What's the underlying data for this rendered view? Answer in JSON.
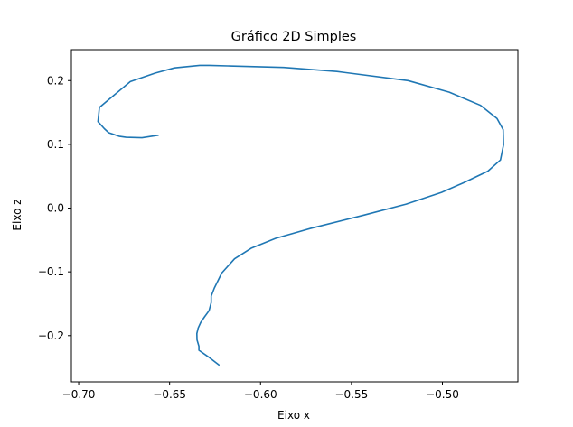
{
  "chart_data": {
    "type": "line",
    "title": "Gráfico 2D Simples",
    "xlabel": "Eixo x",
    "ylabel": "Eixo z",
    "xlim": [
      -0.704,
      -0.4585
    ],
    "ylim": [
      -0.2725,
      0.2485
    ],
    "xticks": [
      -0.7,
      -0.65,
      -0.6,
      -0.55,
      -0.5
    ],
    "xtick_labels": [
      "−0.70",
      "−0.65",
      "−0.60",
      "−0.55",
      "−0.50"
    ],
    "yticks": [
      -0.2,
      -0.1,
      0.0,
      0.1,
      0.2
    ],
    "ytick_labels": [
      "−0.2",
      "−0.1",
      "0.0",
      "0.1",
      "0.2"
    ],
    "grid": false,
    "series": [
      {
        "color": "#1f77b4",
        "x": [
          -0.6229,
          -0.6287,
          -0.6339,
          -0.6339,
          -0.6349,
          -0.635,
          -0.6343,
          -0.6329,
          -0.6308,
          -0.6283,
          -0.6271,
          -0.6271,
          -0.6254,
          -0.6213,
          -0.6143,
          -0.6049,
          -0.5917,
          -0.5721,
          -0.5432,
          -0.5199,
          -0.5005,
          -0.4884,
          -0.475,
          -0.4681,
          -0.4664,
          -0.4666,
          -0.47,
          -0.479,
          -0.4962,
          -0.5189,
          -0.558,
          -0.5872,
          -0.618,
          -0.6281,
          -0.6335,
          -0.6473,
          -0.6578,
          -0.6716,
          -0.6806,
          -0.6886,
          -0.6894,
          -0.6859,
          -0.6835,
          -0.6778,
          -0.6739,
          -0.6652,
          -0.6563
        ],
        "y": [
          -0.246,
          -0.2333,
          -0.223,
          -0.2167,
          -0.2066,
          -0.1968,
          -0.188,
          -0.1793,
          -0.1706,
          -0.1609,
          -0.1482,
          -0.138,
          -0.1253,
          -0.1017,
          -0.0795,
          -0.0625,
          -0.0474,
          -0.0315,
          -0.011,
          0.0063,
          0.0246,
          0.0397,
          0.058,
          0.0755,
          0.0992,
          0.123,
          0.1405,
          0.1611,
          0.1818,
          0.2,
          0.2143,
          0.2206,
          0.223,
          0.2238,
          0.2238,
          0.2199,
          0.2119,
          0.1984,
          0.177,
          0.1579,
          0.1357,
          0.1246,
          0.1182,
          0.1127,
          0.1111,
          0.1103,
          0.1143
        ]
      }
    ]
  }
}
